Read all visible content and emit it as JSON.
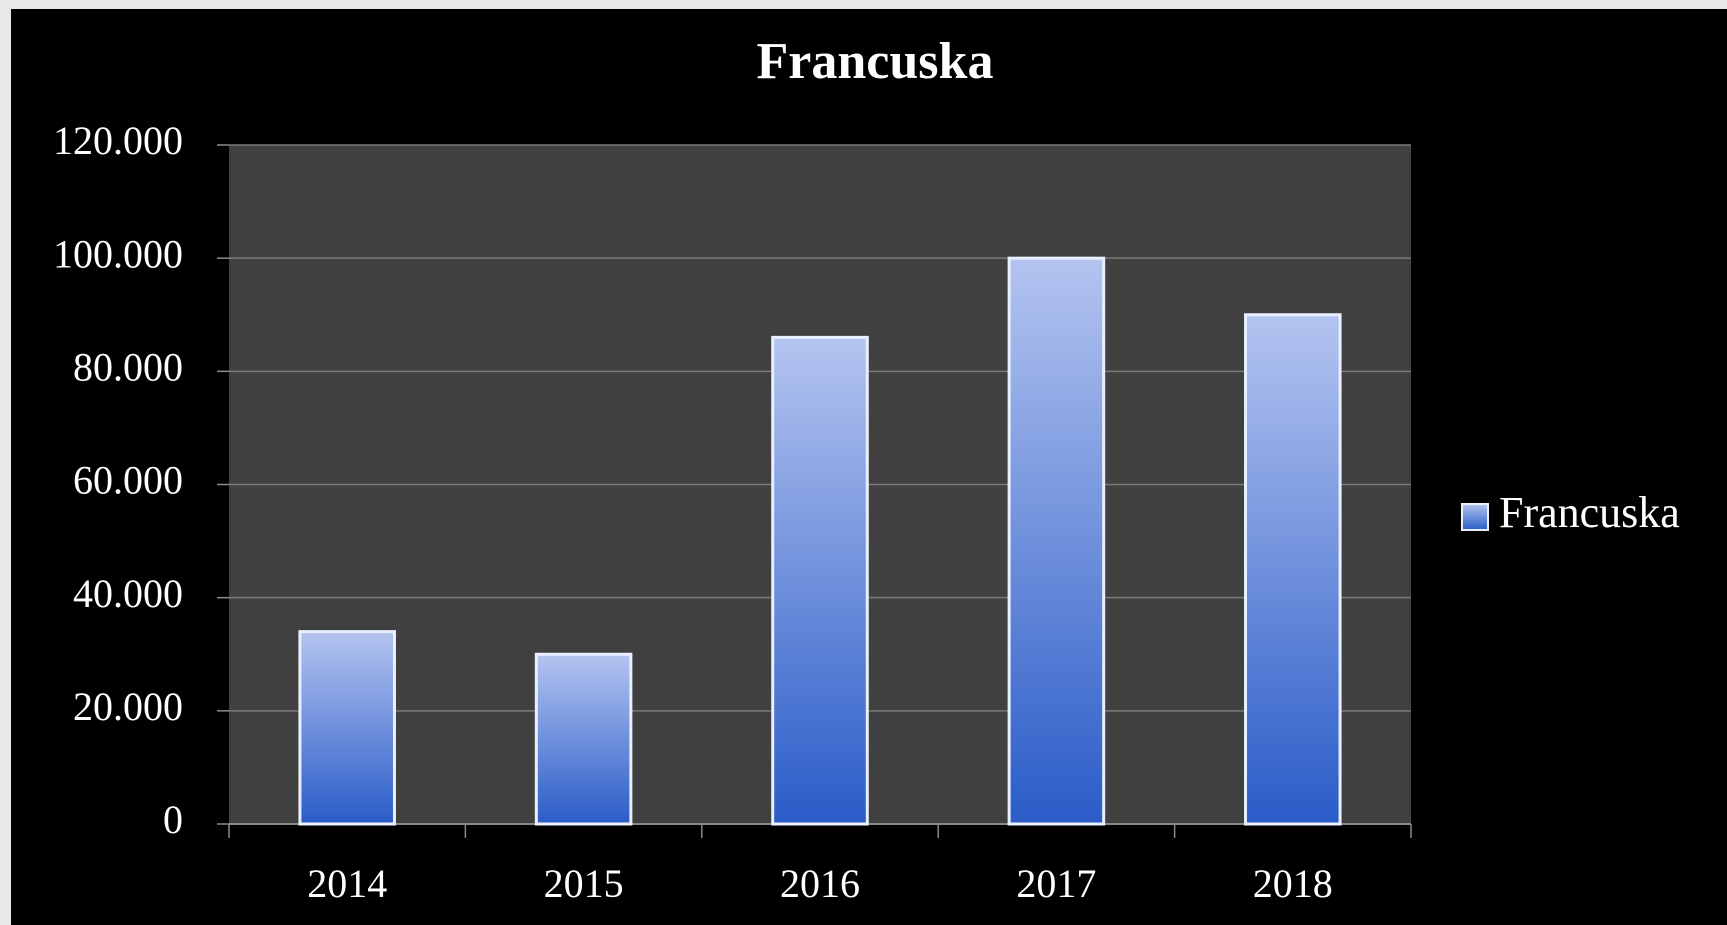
{
  "chart_data": {
    "type": "bar",
    "title": "Francuska",
    "categories": [
      "2014",
      "2015",
      "2016",
      "2017",
      "2018"
    ],
    "series": [
      {
        "name": "Francuska",
        "color": "#4a78d8",
        "values": [
          34000,
          30000,
          86000,
          100000,
          90000
        ]
      }
    ],
    "ylim": [
      0,
      120000
    ],
    "yticks": [
      0,
      {
        "value": 20000,
        "label": "20.000"
      },
      {
        "value": 40000,
        "label": "40.000"
      },
      {
        "value": 60000,
        "label": "60.000"
      },
      {
        "value": 80000,
        "label": "80.000"
      },
      {
        "value": 100000,
        "label": "100.000"
      },
      {
        "value": 120000,
        "label": "120.000"
      }
    ],
    "grid": true,
    "legend": "right"
  }
}
